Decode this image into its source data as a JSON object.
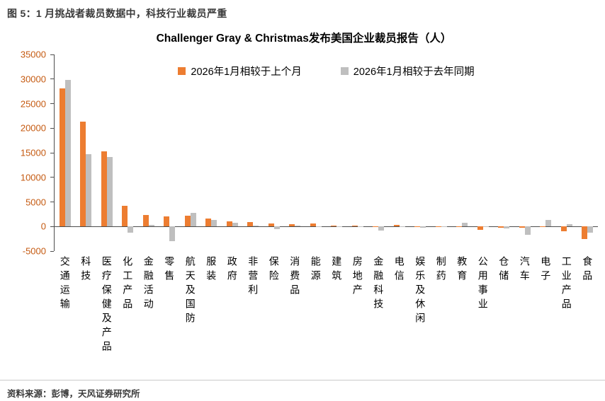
{
  "page": {
    "caption": "图 5：1 月挑战者裁员数据中，科技行业裁员严重",
    "source": "资料来源：彭博，天风证券研究所"
  },
  "chart_data": {
    "type": "bar",
    "title": "Challenger Gray & Christmas发布美国企业裁员报告（人）",
    "categories": [
      "交通运输",
      "科技",
      "医疗保健及产品",
      "化工产品",
      "金融活动",
      "零售",
      "航天及国防",
      "服装",
      "政府",
      "非营利",
      "保险",
      "消费品",
      "能源",
      "建筑",
      "房地产",
      "金融科技",
      "电信",
      "娱乐及休闲",
      "制药",
      "教育",
      "公用事业",
      "仓储",
      "汽车",
      "电子",
      "工业产品",
      "食品"
    ],
    "series": [
      {
        "name": "2026年1月相较于上个月",
        "color": "#ED7D31",
        "values": [
          28100,
          21300,
          15300,
          4200,
          2300,
          2000,
          2200,
          1600,
          1000,
          900,
          600,
          400,
          600,
          200,
          150,
          100,
          300,
          100,
          100,
          100,
          -700,
          -300,
          -200,
          -100,
          -900,
          -2600
        ]
      },
      {
        "name": "2026年1月相较于去年同期",
        "color": "#BFBFBF",
        "values": [
          29800,
          14700,
          14200,
          -1200,
          300,
          -3000,
          2700,
          1400,
          700,
          200,
          -500,
          200,
          100,
          100,
          50,
          -800,
          100,
          -300,
          -150,
          700,
          100,
          -400,
          -1700,
          1300,
          400,
          -1300
        ]
      }
    ],
    "ylim": [
      -5000,
      35000
    ],
    "ytick_step": 5000,
    "grid": false,
    "legend_position": "top-inside",
    "axis_label_color": "#C55A11"
  }
}
